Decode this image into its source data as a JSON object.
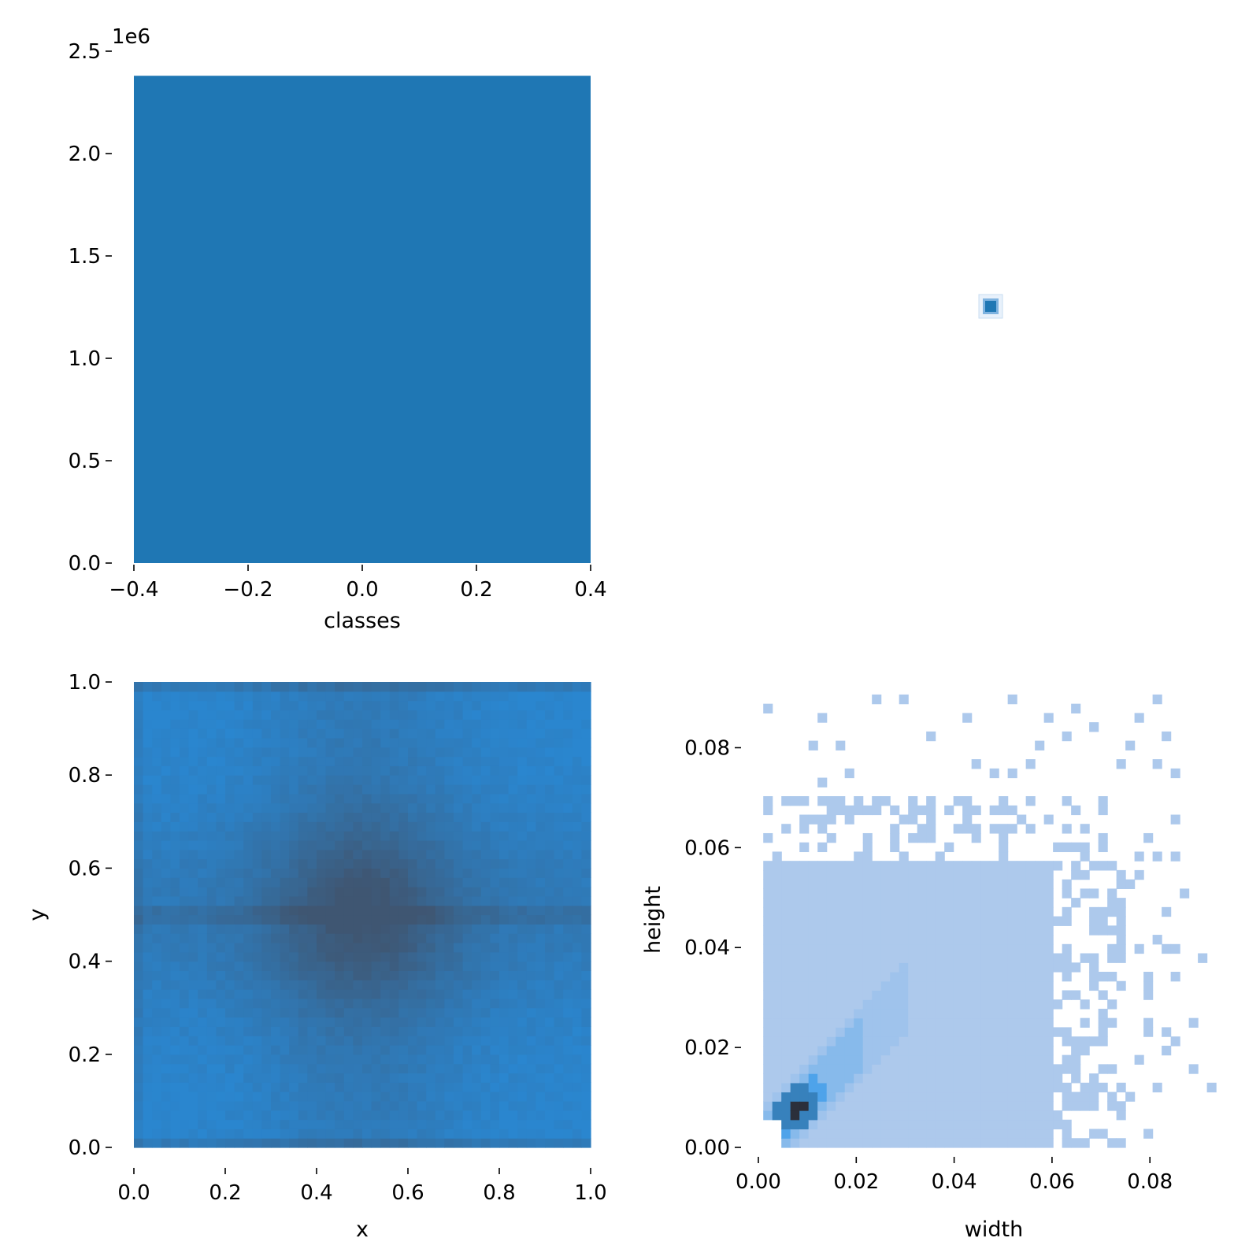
{
  "colors": {
    "bar": "#1f77b4",
    "xy_dark": "#3f5672",
    "xy_light": "#2a86cf",
    "wh_light": "#adc9ec",
    "wh_mid": "#4ea3ea",
    "wh_dark": "#1f5f8e",
    "wh_darkest": "#2b2f3b"
  },
  "chart_data": [
    {
      "id": "classes",
      "type": "bar",
      "xlabel": "classes",
      "ylabel": "",
      "x_ticks": [
        "−0.4",
        "−0.2",
        "0.0",
        "0.2",
        "0.4"
      ],
      "y_ticks": [
        "0.0",
        "0.5",
        "1.0",
        "1.5",
        "2.0",
        "2.5"
      ],
      "y_offset_label": "1e6",
      "xlim": [
        -0.4,
        0.4
      ],
      "ylim": [
        0,
        2500000
      ],
      "bars": [
        {
          "x_start": -0.4,
          "x_end": 0.4,
          "value": 2380000
        }
      ]
    },
    {
      "id": "classes-vs-classes",
      "type": "heatmap",
      "note_visible": "single small square",
      "cells": [
        {
          "x": 0,
          "y": 0
        }
      ]
    },
    {
      "id": "x-y",
      "type": "heatmap",
      "xlabel": "x",
      "ylabel": "y",
      "x_ticks": [
        "0.0",
        "0.2",
        "0.4",
        "0.6",
        "0.8",
        "1.0"
      ],
      "y_ticks": [
        "0.0",
        "0.2",
        "0.4",
        "0.6",
        "0.8",
        "1.0"
      ],
      "xlim": [
        0,
        1
      ],
      "ylim": [
        0,
        1
      ],
      "bins": 50,
      "pattern": "density highest near center (0.5, 0.5), dark bands along x=0.5 and y=0.5, lighter toward corners"
    },
    {
      "id": "width-height",
      "type": "heatmap",
      "xlabel": "width",
      "ylabel": "height",
      "x_ticks": [
        "0.00",
        "0.02",
        "0.04",
        "0.06",
        "0.08"
      ],
      "y_ticks": [
        "0.00",
        "0.02",
        "0.04",
        "0.06",
        "0.08"
      ],
      "xlim": [
        0,
        0.093
      ],
      "ylim": [
        0,
        0.093
      ],
      "pattern": "dense block for width 0.001-0.06 and height 0-0.056; peak near (0.006, 0.006); sparse cells beyond"
    }
  ]
}
